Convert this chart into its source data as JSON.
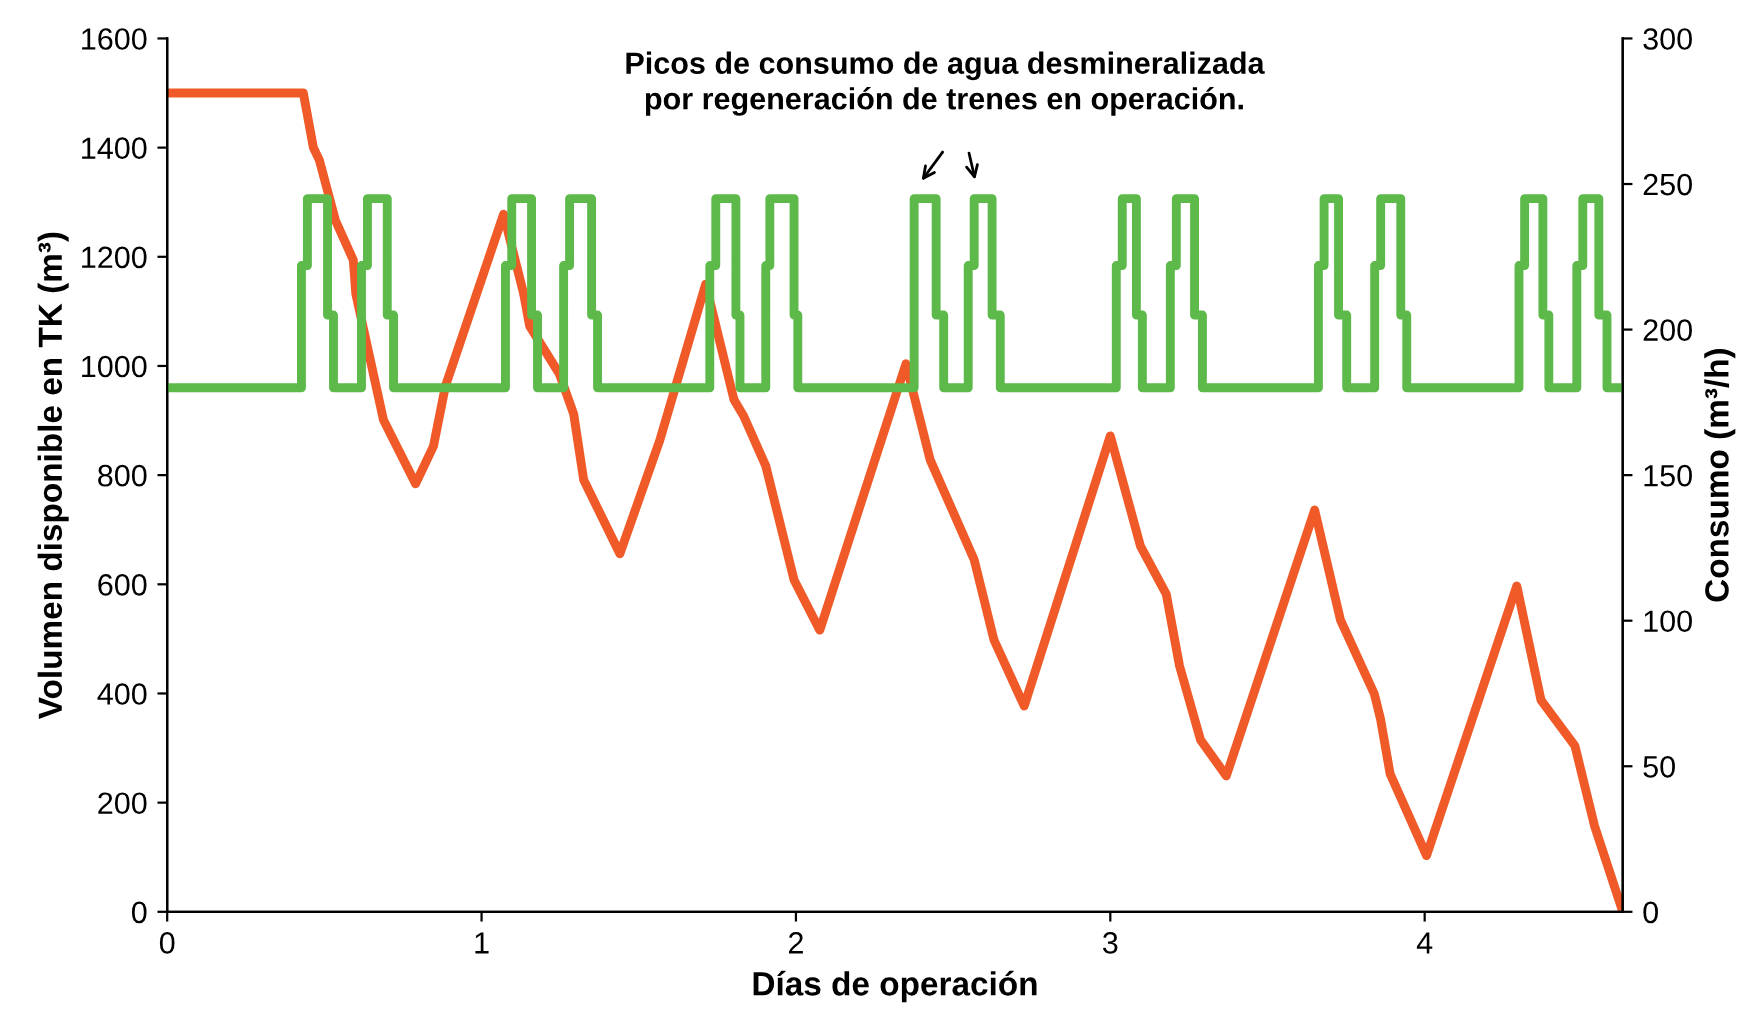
{
  "chart_data": {
    "type": "line",
    "xlabel": "Días de operación",
    "ylabel": "Volumen disponible en TK (m³)",
    "y2label": "Consumo (m³/h)",
    "xlim": [
      0,
      4.63
    ],
    "xticks": [
      0,
      1,
      2,
      3,
      4
    ],
    "ylim": [
      0,
      1600
    ],
    "yticks": [
      0,
      200,
      400,
      600,
      800,
      1000,
      1200,
      1400,
      1600
    ],
    "y2lim": [
      0,
      300
    ],
    "y2ticks": [
      0,
      50,
      100,
      150,
      200,
      250,
      300
    ],
    "grid": false,
    "annotations": [
      "Picos de consumo de agua desmineralizada\npor regeneración de trenes en operación."
    ],
    "series": [
      {
        "color": "#f05a28",
        "x": [
          0,
          0.433,
          0.465,
          0.484,
          0.535,
          0.592,
          0.6,
          0.688,
          0.79,
          0.847,
          0.885,
          1.07,
          1.134,
          1.153,
          1.248,
          1.293,
          1.325,
          1.44,
          1.567,
          1.713,
          1.803,
          1.834,
          1.904,
          1.994,
          2.076,
          2.35,
          2.427,
          2.567,
          2.63,
          2.726,
          3.0,
          3.096,
          3.178,
          3.22,
          3.287,
          3.369,
          3.65,
          3.732,
          3.84,
          3.86,
          3.89,
          4.006,
          4.293,
          4.37,
          4.478,
          4.54,
          4.624
        ],
        "values": [
          1500,
          1500,
          1400,
          1377,
          1267,
          1194,
          1132,
          901,
          784,
          853,
          963,
          1278,
          1132,
          1073,
          985,
          912,
          791,
          656,
          864,
          1150,
          938,
          908,
          817,
          608,
          516,
          1004,
          828,
          645,
          498,
          377,
          872,
          670,
          582,
          451,
          315,
          249,
          736,
          535,
          399,
          352,
          253,
          103,
          597,
          388,
          304,
          158,
          11
        ]
      },
      {
        "type": "step",
        "axis": "y2",
        "color": "#5cb94a",
        "x": [
          0,
          0.427,
          0.446,
          0.51,
          0.529,
          0.618,
          0.637,
          0.7,
          0.72,
          1.076,
          1.096,
          1.159,
          1.178,
          1.261,
          1.28,
          1.35,
          1.369,
          1.726,
          1.745,
          1.809,
          1.822,
          1.904,
          1.917,
          1.994,
          2.006,
          2.376,
          2.446,
          2.47,
          2.548,
          2.567,
          2.624,
          2.65,
          3.019,
          3.038,
          3.083,
          3.102,
          3.191,
          3.21,
          3.268,
          3.293,
          3.662,
          3.68,
          3.726,
          3.752,
          3.841,
          3.86,
          3.924,
          3.943,
          4.3,
          4.318,
          4.376,
          4.395,
          4.484,
          4.503,
          4.554,
          4.58,
          4.63
        ],
        "values": [
          180,
          222,
          245,
          205,
          180,
          222,
          245,
          205,
          180,
          222,
          245,
          205,
          180,
          222,
          245,
          205,
          180,
          222,
          245,
          205,
          180,
          222,
          245,
          205,
          180,
          245,
          205,
          180,
          222,
          245,
          205,
          180,
          222,
          245,
          205,
          180,
          222,
          245,
          205,
          180,
          222,
          245,
          205,
          180,
          222,
          245,
          205,
          180,
          222,
          245,
          205,
          180,
          222,
          245,
          205,
          180,
          180
        ]
      }
    ]
  }
}
